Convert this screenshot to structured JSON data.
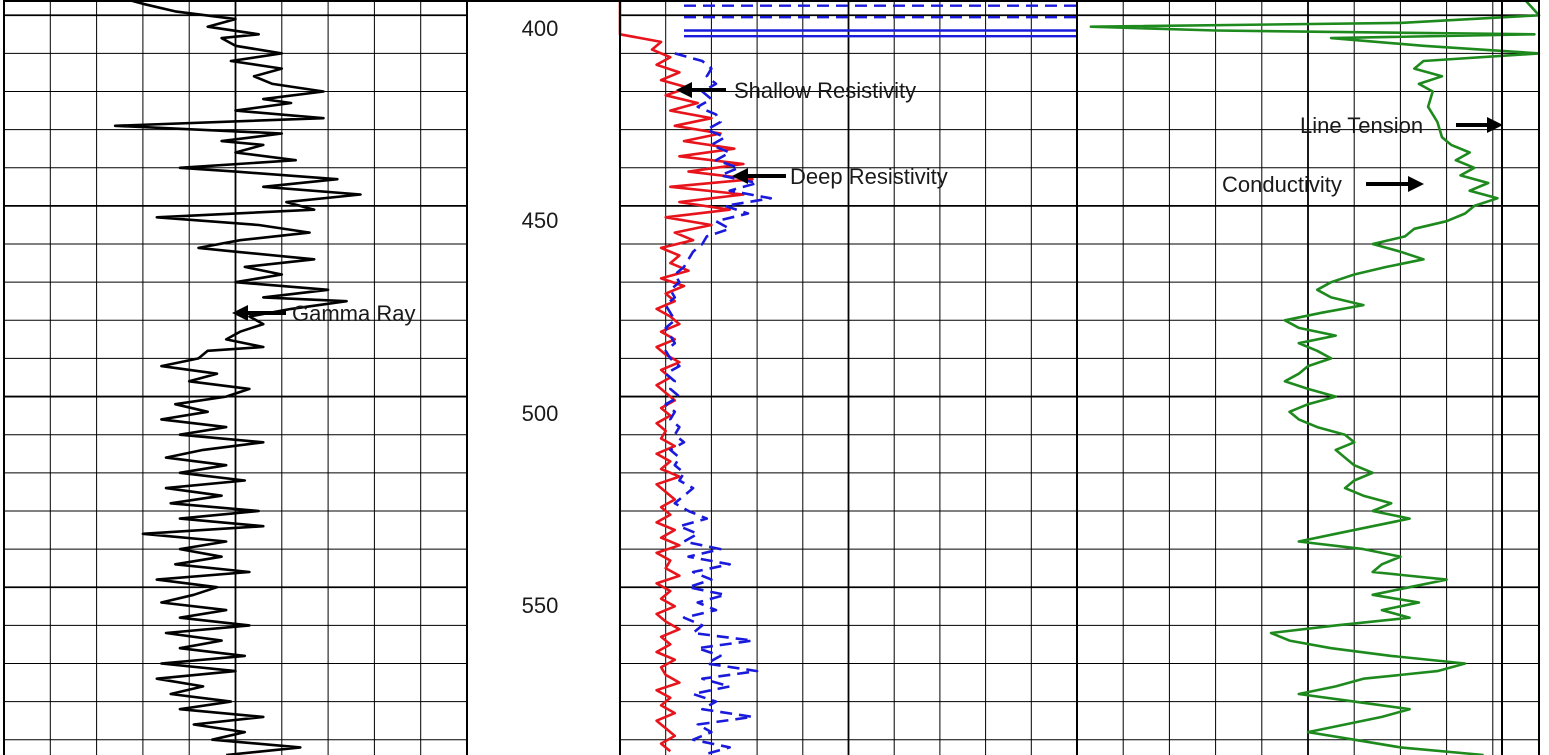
{
  "chart_data": {
    "type": "line",
    "title": "",
    "y_axis": {
      "label": "",
      "range": [
        396,
        594
      ],
      "inverted": true,
      "ticks": [
        400,
        450,
        500,
        550
      ]
    },
    "grid": true,
    "tracks": [
      {
        "name": "track-1",
        "series": [
          {
            "name": "Gamma Ray",
            "color": "#000000",
            "style": "solid",
            "units": "track fraction",
            "depth": [
              396,
              397,
              399,
              401,
              403,
              405,
              406,
              408,
              410,
              412,
              414,
              416,
              418,
              420,
              422,
              423,
              425,
              427,
              429,
              431,
              433,
              434,
              436,
              438,
              440,
              441,
              443,
              445,
              447,
              449,
              451,
              453,
              455,
              457,
              459,
              461,
              462,
              464,
              466,
              468,
              470,
              472,
              474,
              475,
              477,
              479,
              481,
              483,
              485,
              487,
              488,
              490,
              492,
              494,
              496,
              498,
              500,
              502,
              504,
              506,
              508,
              510,
              512,
              514,
              516,
              518,
              520,
              522,
              524,
              526,
              528,
              530,
              532,
              534,
              536,
              538,
              540,
              542,
              544,
              546,
              548,
              550,
              552,
              554,
              556,
              558,
              560,
              562,
              564,
              566,
              568,
              570,
              572,
              574,
              576,
              578,
              580,
              582,
              584,
              586,
              588,
              590,
              592,
              594
            ],
            "values": [
              0.27,
              0.3,
              0.37,
              0.5,
              0.44,
              0.55,
              0.47,
              0.5,
              0.6,
              0.49,
              0.6,
              0.54,
              0.58,
              0.69,
              0.56,
              0.62,
              0.5,
              0.69,
              0.24,
              0.6,
              0.47,
              0.56,
              0.5,
              0.63,
              0.38,
              0.5,
              0.72,
              0.56,
              0.77,
              0.61,
              0.67,
              0.33,
              0.55,
              0.66,
              0.51,
              0.42,
              0.5,
              0.67,
              0.52,
              0.6,
              0.5,
              0.7,
              0.56,
              0.74,
              0.62,
              0.53,
              0.56,
              0.51,
              0.48,
              0.56,
              0.44,
              0.42,
              0.34,
              0.46,
              0.4,
              0.53,
              0.48,
              0.37,
              0.44,
              0.34,
              0.48,
              0.38,
              0.56,
              0.43,
              0.35,
              0.48,
              0.38,
              0.52,
              0.35,
              0.47,
              0.36,
              0.55,
              0.38,
              0.56,
              0.3,
              0.48,
              0.38,
              0.47,
              0.37,
              0.53,
              0.33,
              0.46,
              0.41,
              0.34,
              0.48,
              0.38,
              0.53,
              0.35,
              0.47,
              0.38,
              0.52,
              0.34,
              0.5,
              0.33,
              0.43,
              0.36,
              0.49,
              0.38,
              0.56,
              0.41,
              0.52,
              0.45,
              0.64,
              0.48
            ]
          }
        ]
      },
      {
        "name": "track-2",
        "series": [
          {
            "name": "Shallow Resistivity",
            "color": "#e8141c",
            "style": "solid",
            "units": "track fraction",
            "depth": [
              396,
              405,
              407,
              409,
              411,
              413,
              415,
              417,
              419,
              421,
              423,
              425,
              427,
              429,
              431,
              433,
              435,
              437,
              439,
              441,
              443,
              445,
              447,
              449,
              451,
              453,
              455,
              457,
              459,
              461,
              463,
              465,
              467,
              469,
              471,
              473,
              475,
              477,
              479,
              481,
              483,
              485,
              487,
              489,
              491,
              493,
              495,
              497,
              499,
              501,
              503,
              505,
              507,
              509,
              511,
              513,
              515,
              517,
              519,
              521,
              523,
              525,
              527,
              529,
              531,
              533,
              535,
              537,
              539,
              541,
              543,
              545,
              547,
              549,
              551,
              553,
              555,
              557,
              559,
              561,
              563,
              565,
              567,
              569,
              571,
              573,
              575,
              577,
              579,
              581,
              583,
              585,
              587,
              589,
              591,
              593
            ],
            "values": [
              0.0,
              0.0,
              0.09,
              0.07,
              0.11,
              0.08,
              0.13,
              0.09,
              0.15,
              0.1,
              0.17,
              0.11,
              0.2,
              0.12,
              0.22,
              0.14,
              0.25,
              0.13,
              0.27,
              0.15,
              0.29,
              0.11,
              0.27,
              0.13,
              0.24,
              0.1,
              0.2,
              0.12,
              0.16,
              0.09,
              0.13,
              0.11,
              0.15,
              0.09,
              0.14,
              0.1,
              0.12,
              0.08,
              0.11,
              0.13,
              0.09,
              0.12,
              0.08,
              0.1,
              0.13,
              0.09,
              0.11,
              0.08,
              0.1,
              0.12,
              0.09,
              0.11,
              0.08,
              0.1,
              0.09,
              0.12,
              0.08,
              0.11,
              0.09,
              0.13,
              0.08,
              0.1,
              0.12,
              0.09,
              0.11,
              0.08,
              0.12,
              0.09,
              0.13,
              0.08,
              0.11,
              0.1,
              0.13,
              0.08,
              0.11,
              0.09,
              0.12,
              0.08,
              0.1,
              0.13,
              0.09,
              0.11,
              0.08,
              0.12,
              0.09,
              0.1,
              0.13,
              0.08,
              0.11,
              0.09,
              0.12,
              0.08,
              0.1,
              0.12,
              0.09,
              0.11
            ]
          },
          {
            "name": "Deep Resistivity",
            "color": "#1a1adc",
            "style": "dashed",
            "units": "track fraction",
            "depth": [
              410,
              412,
              414,
              416,
              418,
              420,
              422,
              424,
              426,
              428,
              430,
              432,
              434,
              436,
              438,
              440,
              442,
              444,
              446,
              448,
              450,
              452,
              454,
              456,
              458,
              460,
              462,
              464,
              466,
              468,
              470,
              472,
              474,
              476,
              478,
              480,
              482,
              484,
              486,
              488,
              490,
              492,
              494,
              496,
              498,
              500,
              502,
              504,
              506,
              508,
              510,
              512,
              514,
              516,
              518,
              520,
              522,
              524,
              526,
              528,
              530,
              532,
              534,
              536,
              538,
              540,
              542,
              544,
              546,
              548,
              550,
              552,
              554,
              556,
              558,
              560,
              562,
              564,
              566,
              568,
              570,
              572,
              574,
              576,
              578,
              580,
              582,
              584,
              586,
              588,
              590,
              592,
              594
            ],
            "values": [
              0.12,
              0.18,
              0.2,
              0.19,
              0.21,
              0.18,
              0.2,
              0.17,
              0.21,
              0.22,
              0.19,
              0.23,
              0.2,
              0.24,
              0.21,
              0.26,
              0.22,
              0.3,
              0.24,
              0.33,
              0.23,
              0.28,
              0.21,
              0.24,
              0.19,
              0.18,
              0.16,
              0.15,
              0.14,
              0.12,
              0.13,
              0.11,
              0.12,
              0.1,
              0.11,
              0.12,
              0.1,
              0.11,
              0.12,
              0.1,
              0.11,
              0.13,
              0.1,
              0.12,
              0.11,
              0.13,
              0.1,
              0.12,
              0.11,
              0.13,
              0.12,
              0.14,
              0.11,
              0.13,
              0.12,
              0.14,
              0.13,
              0.16,
              0.14,
              0.12,
              0.15,
              0.19,
              0.13,
              0.17,
              0.14,
              0.22,
              0.15,
              0.24,
              0.16,
              0.2,
              0.15,
              0.23,
              0.17,
              0.21,
              0.14,
              0.18,
              0.16,
              0.29,
              0.17,
              0.22,
              0.19,
              0.3,
              0.18,
              0.24,
              0.16,
              0.21,
              0.18,
              0.29,
              0.17,
              0.2,
              0.16,
              0.24,
              0.18
            ]
          }
        ]
      },
      {
        "name": "track-3",
        "series": [
          {
            "name": "Conductivity",
            "color": "#1e8a1e",
            "style": "solid",
            "units": "track fraction",
            "depth": [
              396,
              400,
              402,
              403,
              404,
              405,
              406,
              408,
              410,
              412,
              414,
              416,
              418,
              420,
              424,
              428,
              432,
              434,
              436,
              438,
              440,
              442,
              444,
              446,
              448,
              450,
              452,
              454,
              456,
              458,
              460,
              462,
              464,
              466,
              468,
              470,
              472,
              474,
              476,
              478,
              480,
              482,
              484,
              486,
              488,
              490,
              492,
              494,
              496,
              498,
              500,
              502,
              504,
              506,
              508,
              510,
              512,
              514,
              516,
              518,
              520,
              522,
              524,
              526,
              528,
              530,
              532,
              534,
              536,
              538,
              540,
              542,
              544,
              546,
              548,
              550,
              552,
              554,
              556,
              558,
              560,
              562,
              564,
              566,
              568,
              570,
              572,
              574,
              576,
              578,
              580,
              582,
              584,
              586,
              588,
              590,
              592,
              594
            ],
            "values": [
              0.97,
              1.0,
              0.7,
              0.03,
              0.3,
              0.99,
              0.55,
              0.75,
              1.0,
              0.75,
              0.73,
              0.79,
              0.74,
              0.77,
              0.76,
              0.78,
              0.79,
              0.81,
              0.85,
              0.82,
              0.86,
              0.83,
              0.89,
              0.85,
              0.91,
              0.86,
              0.84,
              0.8,
              0.73,
              0.71,
              0.64,
              0.7,
              0.75,
              0.67,
              0.6,
              0.55,
              0.52,
              0.55,
              0.62,
              0.53,
              0.45,
              0.48,
              0.56,
              0.48,
              0.52,
              0.55,
              0.5,
              0.48,
              0.45,
              0.5,
              0.56,
              0.5,
              0.46,
              0.48,
              0.52,
              0.58,
              0.6,
              0.56,
              0.58,
              0.6,
              0.64,
              0.6,
              0.58,
              0.62,
              0.68,
              0.64,
              0.72,
              0.64,
              0.56,
              0.48,
              0.62,
              0.7,
              0.66,
              0.64,
              0.8,
              0.72,
              0.64,
              0.74,
              0.66,
              0.72,
              0.56,
              0.42,
              0.46,
              0.55,
              0.68,
              0.84,
              0.78,
              0.62,
              0.56,
              0.48,
              0.6,
              0.72,
              0.66,
              0.58,
              0.5,
              0.6,
              0.7,
              0.88
            ]
          },
          {
            "name": "Line Tension",
            "color": "#000000",
            "style": "solid",
            "units": "track fraction",
            "depth": [
              396,
              594
            ],
            "values": [
              0.92,
              0.92
            ]
          }
        ]
      }
    ],
    "annotations": [
      {
        "text": "Gamma Ray",
        "depth": 475,
        "track": 1
      },
      {
        "text": "Shallow Resistivity",
        "depth": 416,
        "track": 2
      },
      {
        "text": "Deep Resistivity",
        "depth": 438,
        "track": 2
      },
      {
        "text": "Line Tension",
        "depth": 425,
        "track": 3
      },
      {
        "text": "Conductivity",
        "depth": 440,
        "track": 3
      }
    ]
  },
  "labels": {
    "gamma_ray": "Gamma Ray",
    "shallow_resistivity": "Shallow Resistivity",
    "deep_resistivity": "Deep Resistivity",
    "line_tension": "Line Tension",
    "conductivity": "Conductivity"
  },
  "depth_labels": [
    "400",
    "450",
    "500",
    "550"
  ]
}
